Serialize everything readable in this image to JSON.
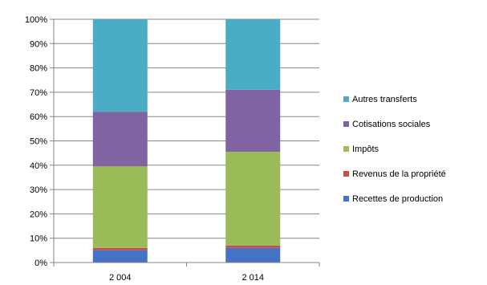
{
  "chart_data": {
    "type": "bar",
    "stacked": "percent",
    "categories": [
      "2 004",
      "2 014"
    ],
    "series": [
      {
        "name": "Recettes de production",
        "color": "#4472c4",
        "values": [
          5,
          6
        ]
      },
      {
        "name": "Revenus de la propriété",
        "color": "#c0504d",
        "values": [
          1,
          1
        ]
      },
      {
        "name": "Impôts",
        "color": "#9bbb59",
        "values": [
          33.5,
          38.5
        ]
      },
      {
        "name": "Cotisations sociales",
        "color": "#8064a2",
        "values": [
          22.5,
          25.5
        ]
      },
      {
        "name": "Autres transferts",
        "color": "#4bacc6",
        "values": [
          38,
          29
        ]
      }
    ],
    "y_ticks": [
      "0%",
      "10%",
      "20%",
      "30%",
      "40%",
      "50%",
      "60%",
      "70%",
      "80%",
      "90%",
      "100%"
    ],
    "ylim": [
      0,
      100
    ],
    "grid": true,
    "legend_position": "right",
    "legend_order": [
      "Autres transferts",
      "Cotisations sociales",
      "Impôts",
      "Revenus de la propriété",
      "Recettes de production"
    ]
  }
}
